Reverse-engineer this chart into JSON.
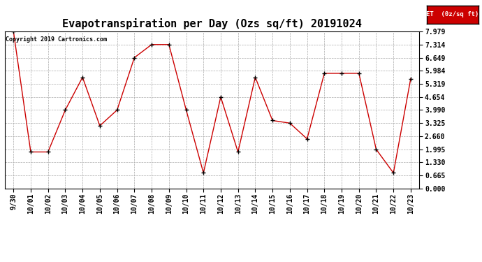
{
  "title": "Evapotranspiration per Day (Ozs sq/ft) 20191024",
  "copyright": "Copyright 2019 Cartronics.com",
  "legend_label": "ET  (0z/sq ft)",
  "legend_bg": "#cc0000",
  "legend_text_color": "#ffffff",
  "x_labels": [
    "9/30",
    "10/01",
    "10/02",
    "10/03",
    "10/04",
    "10/05",
    "10/06",
    "10/07",
    "10/08",
    "10/09",
    "10/10",
    "10/11",
    "10/12",
    "10/13",
    "10/14",
    "10/15",
    "10/16",
    "10/17",
    "10/18",
    "10/19",
    "10/20",
    "10/21",
    "10/22",
    "10/23"
  ],
  "y_values": [
    7.979,
    1.862,
    1.862,
    3.99,
    5.652,
    3.192,
    3.99,
    6.649,
    7.314,
    7.314,
    3.99,
    0.798,
    4.654,
    1.862,
    5.652,
    3.458,
    3.325,
    2.527,
    5.852,
    5.852,
    5.852,
    1.995,
    0.798,
    5.585
  ],
  "y_ticks": [
    0.0,
    0.665,
    1.33,
    1.995,
    2.66,
    3.325,
    3.99,
    4.654,
    5.319,
    5.984,
    6.649,
    7.314,
    7.979
  ],
  "ylim": [
    0.0,
    7.979
  ],
  "line_color": "#cc0000",
  "marker_color": "#000000",
  "bg_color": "#ffffff",
  "grid_color": "#aaaaaa",
  "title_fontsize": 11,
  "tick_fontsize": 7,
  "copyright_fontsize": 6
}
